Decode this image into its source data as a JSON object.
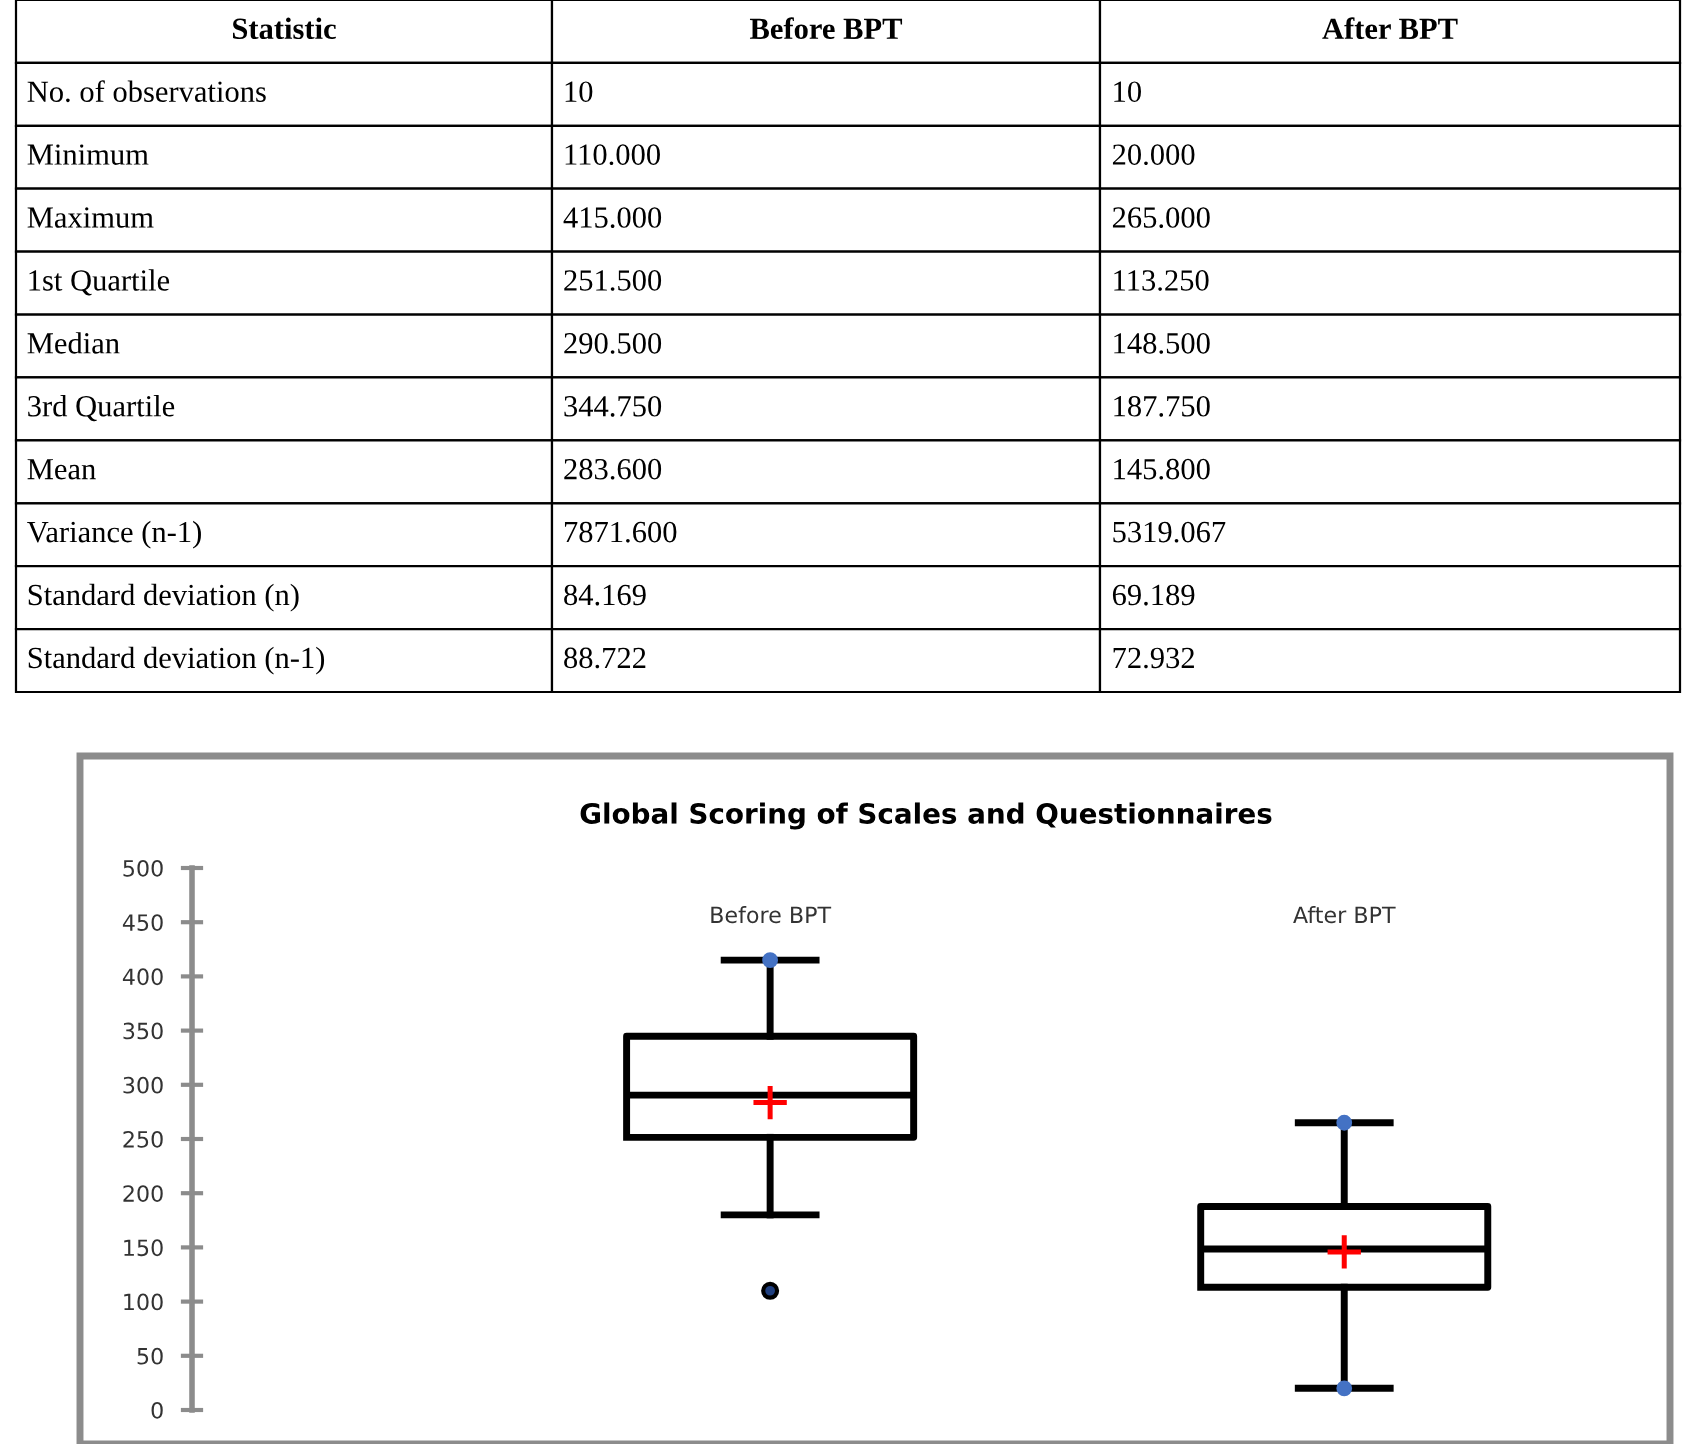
{
  "chart_data": [
    {
      "type": "other",
      "categories": [
        "Statistic",
        "Before BPT",
        "After BPT"
      ],
      "y_categories": [
        "No. of observations",
        "Minimum",
        "Maximum",
        "1st Quartile",
        "Median",
        "3rd Quartile",
        "Mean",
        "Variance (n-1)",
        "Standard deviation (n)",
        "Standard deviation (n-1)"
      ],
      "cell_labels": [
        [
          "10",
          "10"
        ],
        [
          "110.000",
          "20.000"
        ],
        [
          "415.000",
          "265.000"
        ],
        [
          "251.500",
          "113.250"
        ],
        [
          "290.500",
          "148.500"
        ],
        [
          "344.750",
          "187.750"
        ],
        [
          "283.600",
          "145.800"
        ],
        [
          "7871.600",
          "5319.067"
        ],
        [
          "84.169",
          "69.189"
        ],
        [
          "88.722",
          "72.932"
        ]
      ]
    },
    {
      "type": "box",
      "title": "Global Scoring of Scales and Questionnaires",
      "categories": [
        "Before BPT",
        "After BPT"
      ],
      "boxes": [
        {
          "low": 180,
          "q1": 251.5,
          "median": 290.5,
          "q3": 344.75,
          "high": 415,
          "mean": 283.6,
          "outliers": [
            110
          ]
        },
        {
          "low": 20,
          "q1": 113.25,
          "median": 148.5,
          "q3": 187.75,
          "high": 265,
          "mean": 145.8
        }
      ],
      "series": [
        {
          "type": "scatter",
          "color": "#4472c4",
          "x": [
            "Before BPT",
            "After BPT",
            "After BPT"
          ],
          "values": [
            415,
            265,
            20
          ]
        }
      ],
      "ylim": [
        0,
        500
      ],
      "yticks": [
        0,
        50,
        100,
        150,
        200,
        250,
        300,
        350,
        400,
        450,
        500
      ],
      "grid": false
    }
  ]
}
